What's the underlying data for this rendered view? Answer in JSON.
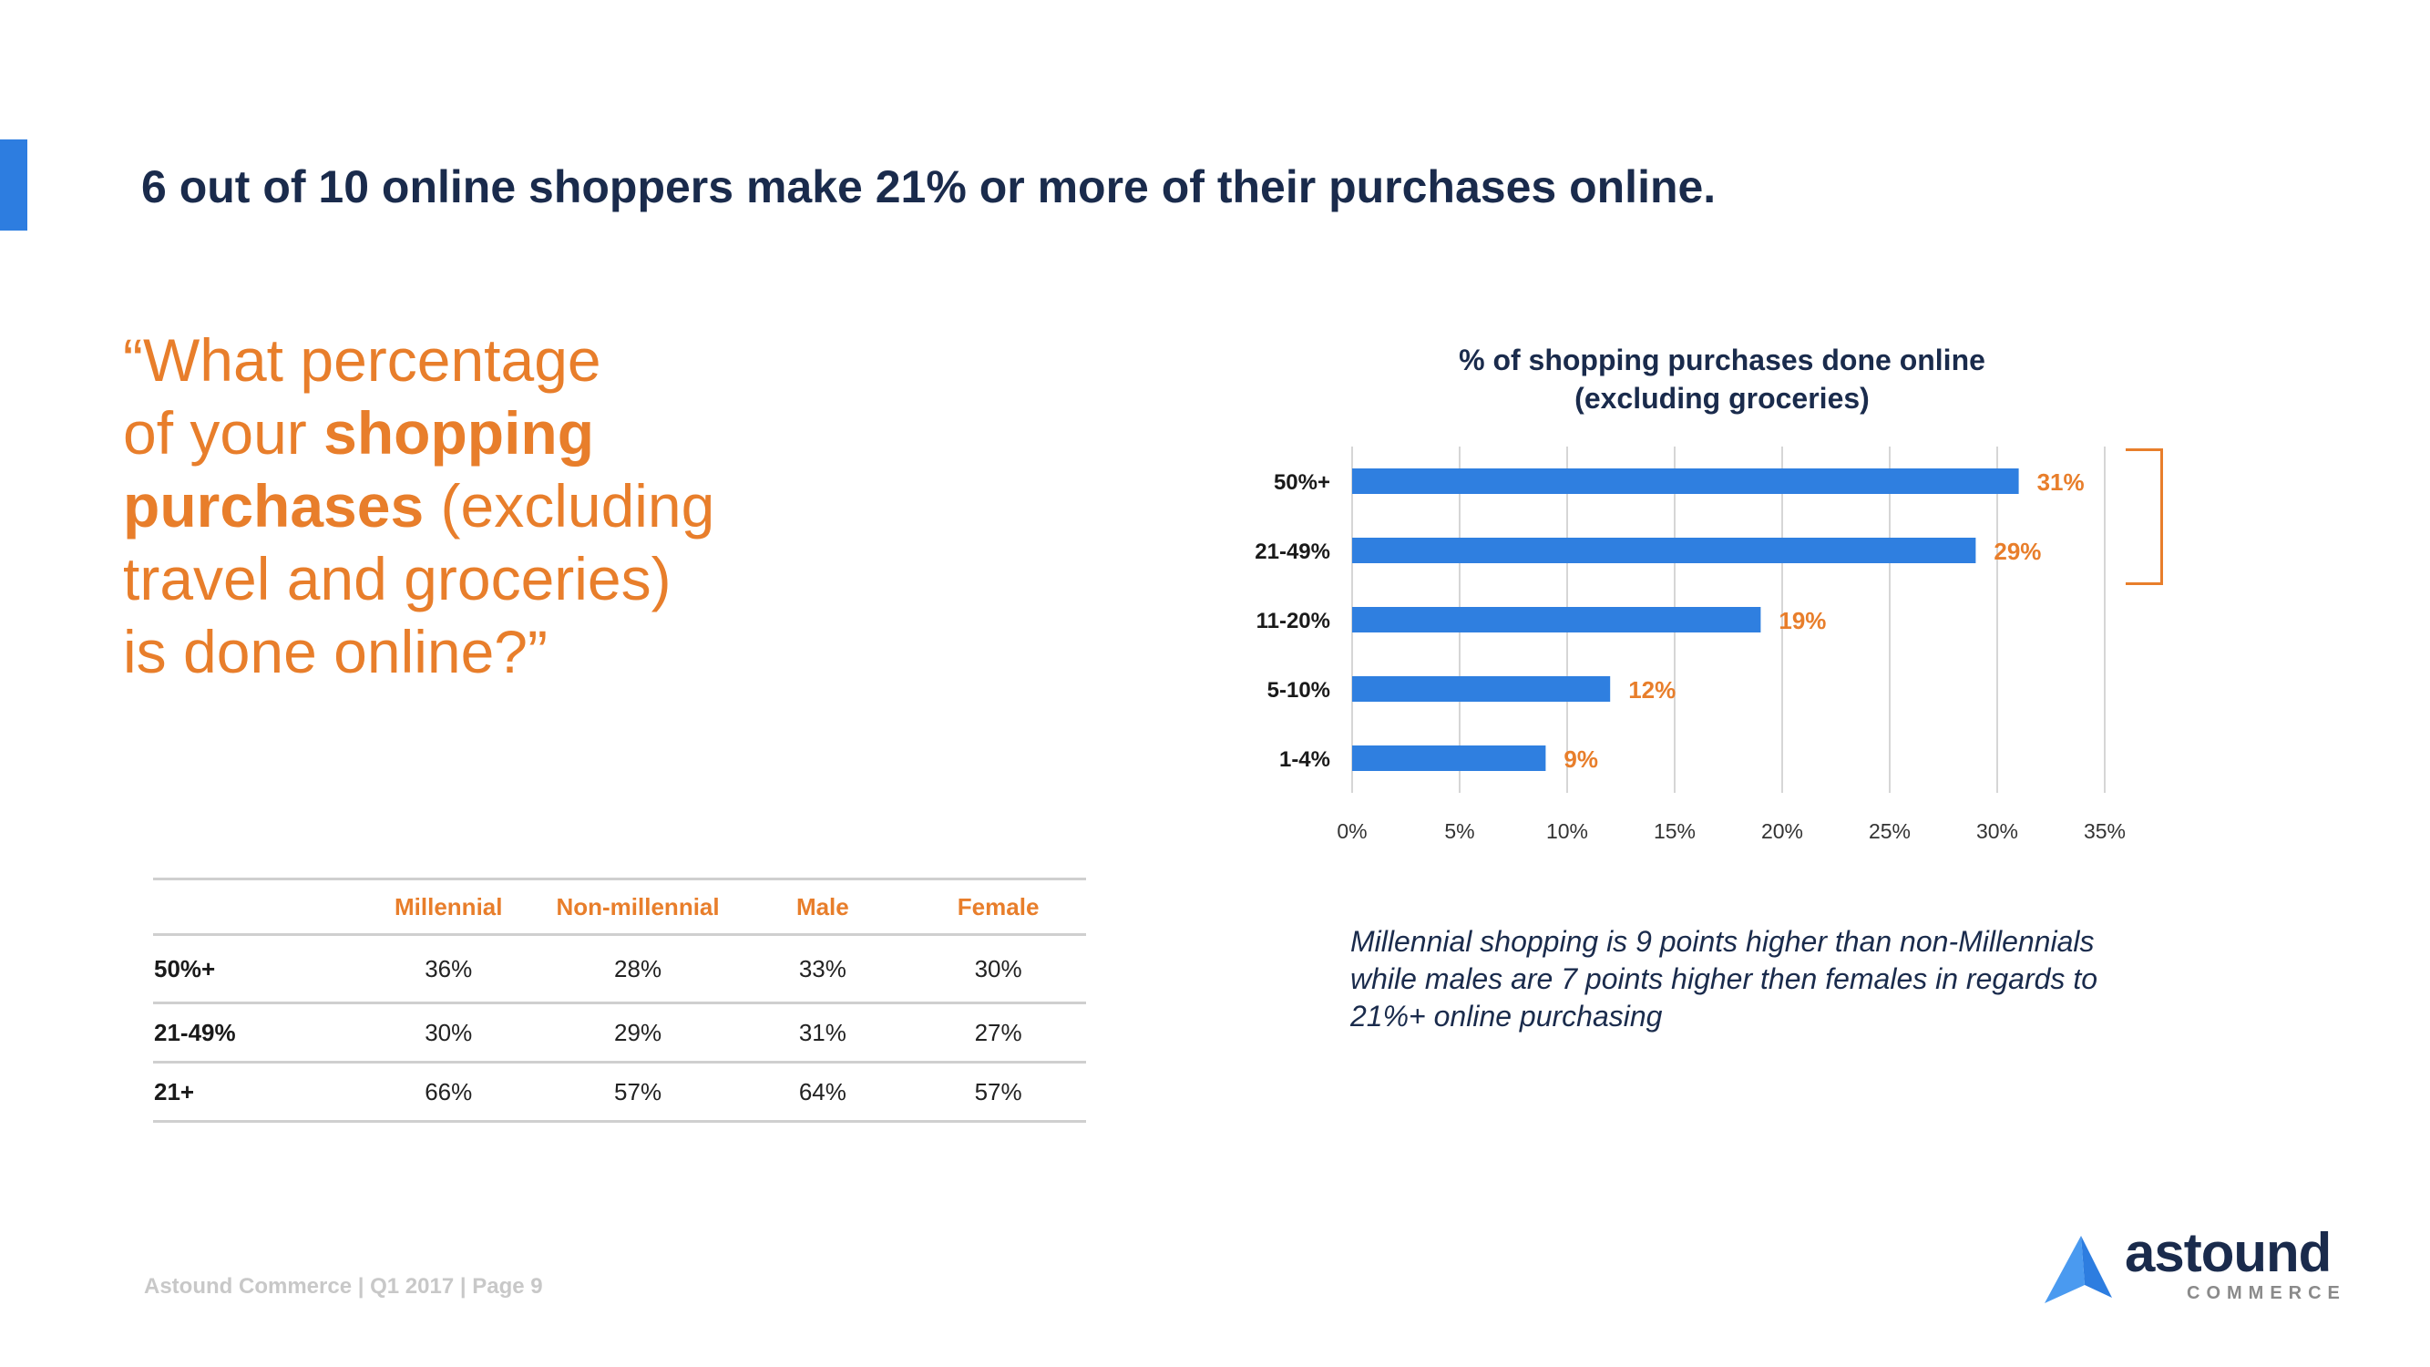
{
  "headline": "6 out of 10 online shoppers make 21% or more of their purchases online.",
  "question": {
    "lines": [
      {
        "plain": "“What percentage",
        "bold": "",
        "after": ""
      },
      {
        "plain": " of your ",
        "bold": "shopping",
        "after": ""
      },
      {
        "plain": "",
        "bold": " purchases",
        "after": " (excluding"
      },
      {
        "plain": " travel and groceries)",
        "bold": "",
        "after": ""
      },
      {
        "plain": " is done online?”",
        "bold": "",
        "after": ""
      }
    ]
  },
  "chart_data": {
    "type": "bar",
    "orientation": "horizontal",
    "title_lines": [
      "% of shopping purchases done online",
      "(excluding groceries)"
    ],
    "categories": [
      "50%+",
      "21-49%",
      "11-20%",
      "5-10%",
      "1-4%"
    ],
    "values": [
      31,
      29,
      19,
      12,
      9
    ],
    "value_labels": [
      "31%",
      "29%",
      "19%",
      "12%",
      "9%"
    ],
    "xlim": [
      0,
      35
    ],
    "x_ticks": [
      0,
      5,
      10,
      15,
      20,
      25,
      30,
      35
    ],
    "x_tick_labels": [
      "0%",
      "5%",
      "10%",
      "15%",
      "20%",
      "25%",
      "30%",
      "35%"
    ],
    "grid": true,
    "bar_color": "#2f7fe0",
    "label_color": "#e87e2b",
    "bracket_groups": [
      "50%+",
      "21-49%"
    ]
  },
  "table": {
    "columns": [
      "",
      "Millennial",
      "Non-millennial",
      "Male",
      "Female"
    ],
    "rows": [
      {
        "label": "50%+",
        "cells": [
          "36%",
          "28%",
          "33%",
          "30%"
        ]
      },
      {
        "label": "21-49%",
        "cells": [
          "30%",
          "29%",
          "31%",
          "27%"
        ]
      },
      {
        "label": "21+",
        "cells": [
          "66%",
          "57%",
          "64%",
          "57%"
        ]
      }
    ]
  },
  "note": {
    "lines": [
      "Millennial shopping is 9 points higher than non-Millennials",
      "while males are 7 points higher then females in regards to",
      "21%+ online purchasing"
    ]
  },
  "footer": "Astound Commerce | Q1 2017 | Page 9",
  "logo": {
    "word": "astound",
    "sub": "COMMERCE",
    "icon": "astound-triangle-icon"
  },
  "colors": {
    "navy": "#1a2b4c",
    "orange": "#e87e2b",
    "blue": "#2d7de0",
    "grey": "#c8c8c8"
  }
}
